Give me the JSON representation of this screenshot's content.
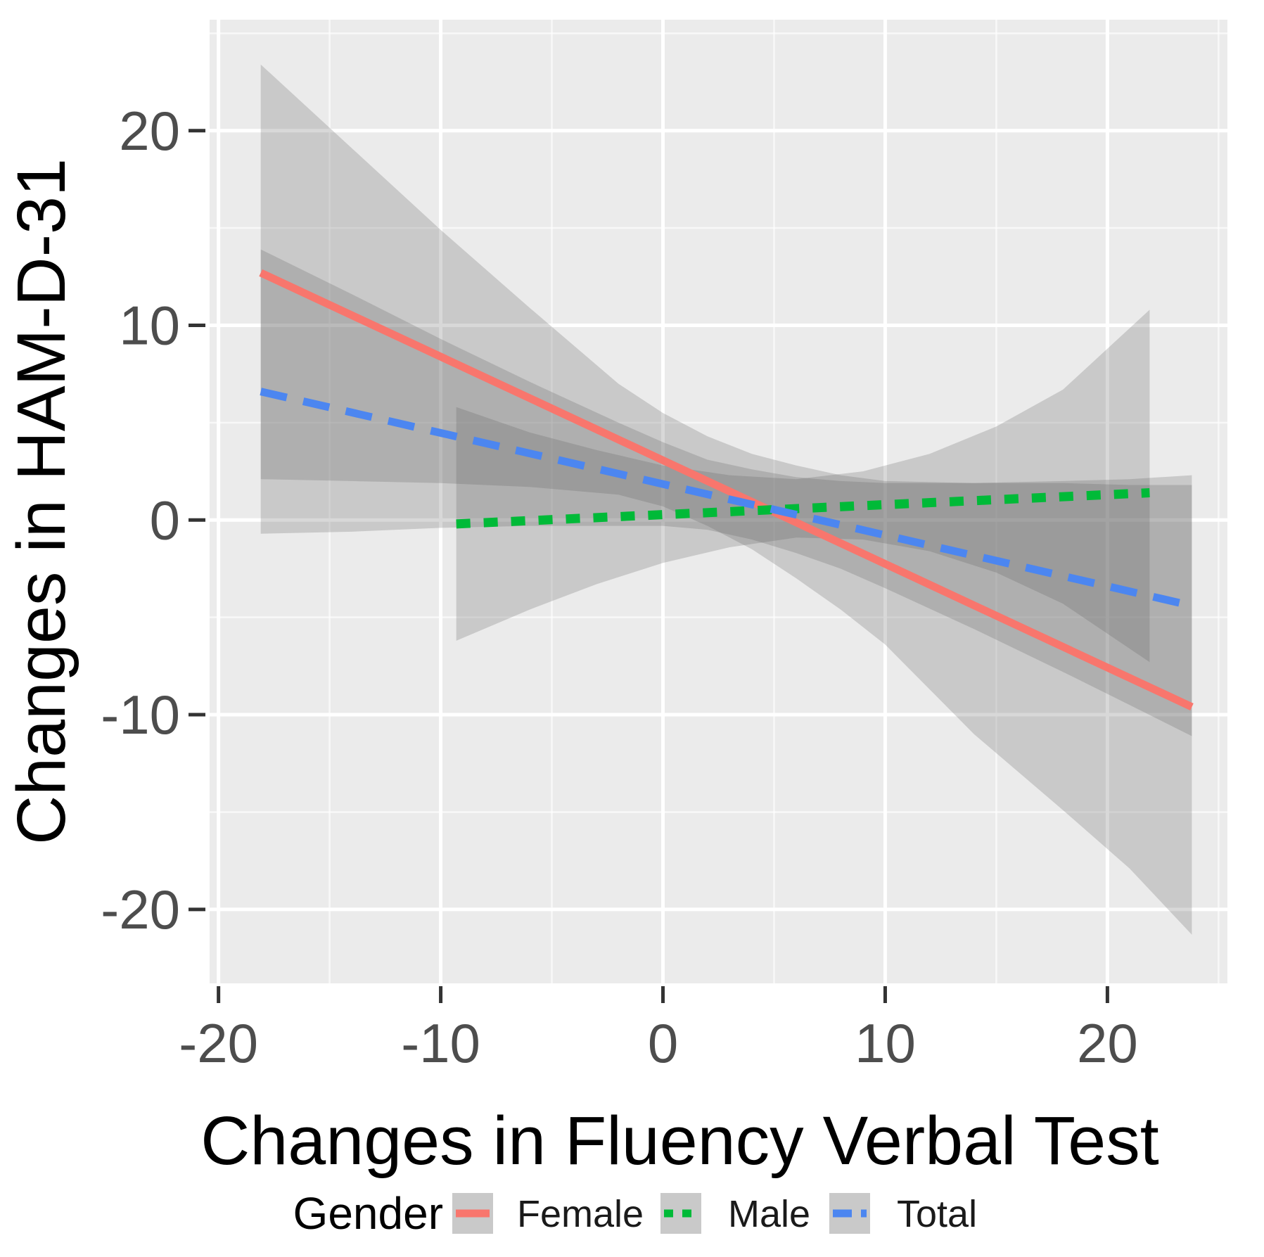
{
  "chart_data": {
    "type": "line",
    "title": "",
    "xlabel": "Changes in Fluency Verbal Test",
    "ylabel": "Changes in HAM-D-31",
    "legend_title": "Gender",
    "legend_position": "bottom",
    "grid": true,
    "panel_bg": "#EBEBEB",
    "grid_color": "#FFFFFF",
    "tick_label_color": "#4d4d4d",
    "title_color": "#000000",
    "xlim": [
      -20.4,
      25.4
    ],
    "ylim": [
      -23.8,
      25.7
    ],
    "x_ticks": [
      -20,
      -10,
      0,
      10,
      20
    ],
    "y_ticks": [
      -20,
      -10,
      0,
      10,
      20
    ],
    "x_minor_ticks": [
      -15,
      -5,
      5,
      15,
      25
    ],
    "y_minor_ticks": [
      -15,
      -5,
      5,
      15,
      25
    ],
    "ribbon_color": "#5A5A5A",
    "ribbon_opacity": 0.24,
    "legend_key_bg": "#C9C9C9",
    "series": [
      {
        "name": "Female",
        "style": "solid",
        "color": "#F8766D",
        "line": {
          "x1": -18.1,
          "y1": 12.7,
          "x2": 23.8,
          "y2": -9.6
        },
        "ribbon": [
          [
            -18.1,
            2.1,
            23.4
          ],
          [
            -14,
            2.0,
            19.1
          ],
          [
            -10,
            1.9,
            14.9
          ],
          [
            -6,
            1.7,
            10.9
          ],
          [
            -2,
            1.3,
            7.0
          ],
          [
            0,
            0.7,
            5.5
          ],
          [
            2,
            -0.3,
            4.3
          ],
          [
            4,
            -1.5,
            3.4
          ],
          [
            6,
            -3.0,
            2.8
          ],
          [
            8,
            -4.6,
            2.3
          ],
          [
            10,
            -6.4,
            2.0
          ],
          [
            14,
            -11.0,
            1.9
          ],
          [
            18,
            -14.9,
            1.9
          ],
          [
            21,
            -17.9,
            1.8
          ],
          [
            23.8,
            -21.3,
            1.8
          ]
        ]
      },
      {
        "name": "Male",
        "style": "dotted",
        "color": "#00BA38",
        "line": {
          "x1": -9.3,
          "y1": -0.2,
          "x2": 21.9,
          "y2": 1.4
        },
        "ribbon": [
          [
            -9.3,
            -6.2,
            5.8
          ],
          [
            -6,
            -4.6,
            4.5
          ],
          [
            -3,
            -3.3,
            3.6
          ],
          [
            0,
            -2.2,
            2.8
          ],
          [
            3,
            -1.4,
            2.3
          ],
          [
            6,
            -0.9,
            2.1
          ],
          [
            9,
            -1.0,
            2.5
          ],
          [
            12,
            -1.6,
            3.4
          ],
          [
            15,
            -2.7,
            4.8
          ],
          [
            18,
            -4.3,
            6.7
          ],
          [
            21.9,
            -7.3,
            10.8
          ]
        ]
      },
      {
        "name": "Total",
        "style": "dashed",
        "color": "#4C86F0",
        "line": {
          "x1": -18.1,
          "y1": 6.6,
          "x2": 23.8,
          "y2": -4.4
        },
        "ribbon": [
          [
            -18.1,
            -0.7,
            13.9
          ],
          [
            -14,
            -0.6,
            11.6
          ],
          [
            -10,
            -0.4,
            9.3
          ],
          [
            -6,
            -0.3,
            7.1
          ],
          [
            -2,
            -0.3,
            5.0
          ],
          [
            0,
            -0.3,
            4.0
          ],
          [
            2,
            -0.5,
            3.1
          ],
          [
            4,
            -1.0,
            2.6
          ],
          [
            6,
            -1.7,
            2.2
          ],
          [
            8,
            -2.5,
            2.0
          ],
          [
            10,
            -3.5,
            1.9
          ],
          [
            14,
            -5.6,
            1.9
          ],
          [
            18,
            -7.8,
            2.0
          ],
          [
            21,
            -9.5,
            2.1
          ],
          [
            23.8,
            -11.1,
            2.3
          ]
        ]
      }
    ]
  }
}
